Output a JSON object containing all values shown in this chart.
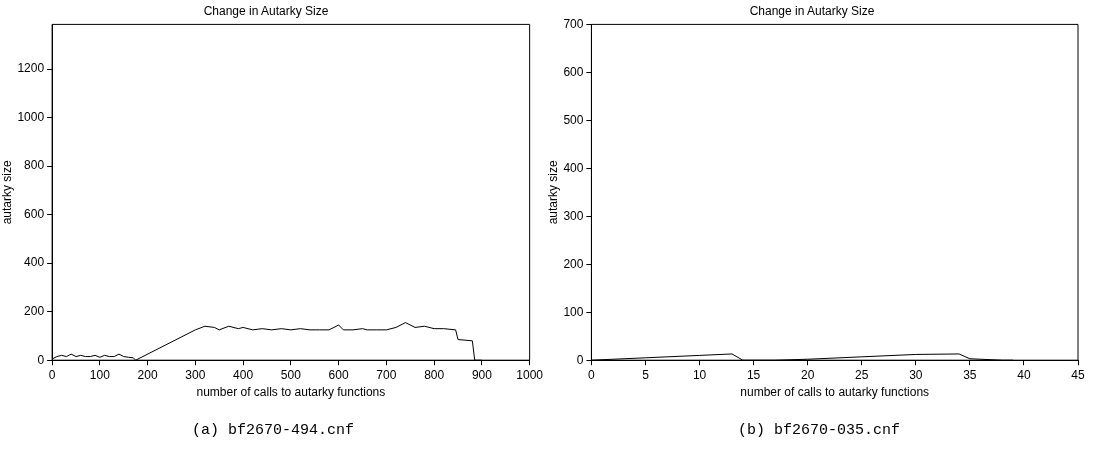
{
  "chart_data": [
    {
      "type": "line",
      "title": "Change in Autarky Size",
      "xlabel": "number of calls to autarky functions",
      "ylabel": "autarky size",
      "annotations": [
        "(a) bf2670-494.cnf"
      ],
      "color": "#000000",
      "grid": false,
      "legend": false,
      "marker": "none",
      "line_style": "solid",
      "x": [
        0,
        10,
        20,
        30,
        40,
        50,
        60,
        70,
        80,
        90,
        100,
        110,
        120,
        130,
        140,
        150,
        160,
        170,
        175,
        300,
        320,
        340,
        350,
        370,
        390,
        400,
        420,
        440,
        460,
        480,
        500,
        520,
        540,
        560,
        580,
        600,
        610,
        630,
        650,
        660,
        680,
        700,
        720,
        740,
        760,
        780,
        800,
        820,
        845,
        850,
        880,
        885,
        900
      ],
      "values": [
        5,
        15,
        20,
        15,
        25,
        15,
        20,
        15,
        15,
        20,
        12,
        20,
        15,
        15,
        25,
        15,
        12,
        10,
        0,
        125,
        140,
        135,
        125,
        140,
        130,
        135,
        125,
        130,
        125,
        130,
        125,
        130,
        125,
        125,
        125,
        145,
        125,
        125,
        130,
        125,
        125,
        125,
        135,
        155,
        135,
        140,
        130,
        130,
        125,
        85,
        80,
        0,
        0
      ],
      "xlim": [
        0,
        1000
      ],
      "xticks": [
        0,
        100,
        200,
        300,
        400,
        500,
        600,
        700,
        800,
        900,
        1000
      ],
      "ylim": [
        0,
        1384
      ],
      "yticks": [
        0,
        200,
        400,
        600,
        800,
        1000,
        1200
      ]
    },
    {
      "type": "line",
      "title": "Change in Autarky Size",
      "xlabel": "number of calls to autarky functions",
      "ylabel": "autarky size",
      "annotations": [
        "(b) bf2670-035.cnf"
      ],
      "color": "#000000",
      "grid": false,
      "legend": false,
      "marker": "none",
      "line_style": "solid",
      "x": [
        0,
        5,
        10,
        13,
        14,
        17,
        20,
        25,
        30,
        34,
        35,
        38,
        39
      ],
      "values": [
        0,
        5,
        10,
        13,
        0,
        0,
        2,
        7,
        12,
        13,
        3,
        0,
        0
      ],
      "xlim": [
        0,
        45
      ],
      "xticks": [
        0,
        5,
        10,
        15,
        20,
        25,
        30,
        35,
        40,
        45
      ],
      "ylim": [
        0,
        700
      ],
      "yticks": [
        0,
        100,
        200,
        300,
        400,
        500,
        600,
        700
      ]
    }
  ]
}
